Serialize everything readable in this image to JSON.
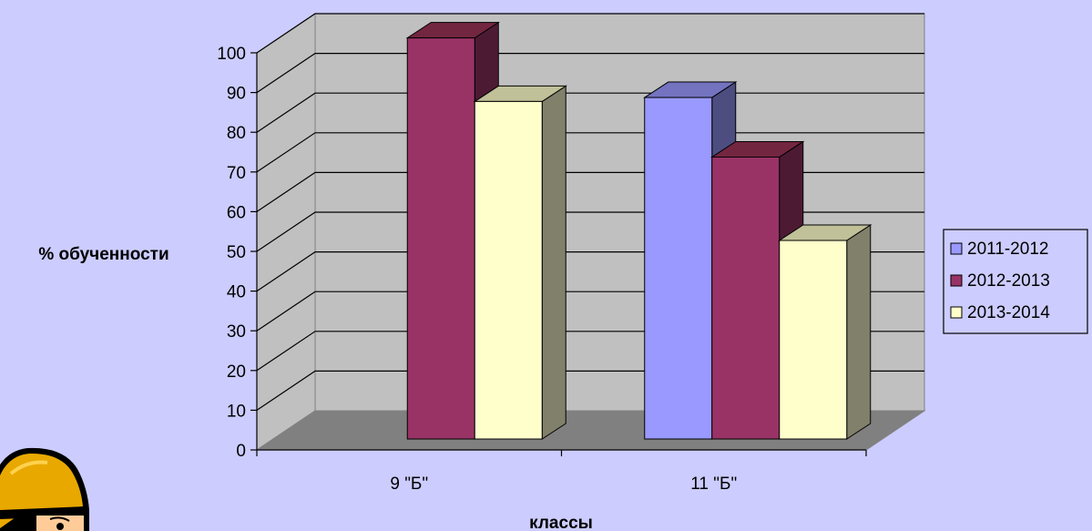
{
  "chart_data": {
    "type": "bar",
    "categories": [
      "9 \"Б\"",
      "11 \"Б\""
    ],
    "series": [
      {
        "name": "2011-2012",
        "values": [
          null,
          86
        ]
      },
      {
        "name": "2012-2013",
        "values": [
          101,
          71
        ]
      },
      {
        "name": "2013-2014",
        "values": [
          85,
          50
        ]
      }
    ],
    "xlabel": "классы",
    "ylabel": "% обученности",
    "ylim": [
      0,
      100
    ],
    "yticks": [
      "0",
      "10",
      "20",
      "30",
      "40",
      "50",
      "60",
      "70",
      "80",
      "90",
      "100"
    ],
    "grid": true,
    "legend_position": "right",
    "style": "3d-clustered-column"
  },
  "colors": {
    "background": "#ccccff",
    "plot_wall": "#c0c0c0",
    "plot_floor": "#808080",
    "series": [
      "#9999ff",
      "#993366",
      "#ffffcc"
    ],
    "series_side": [
      "#4d4d80",
      "#4d1a33",
      "#80806b"
    ],
    "series_top": [
      "#7373c0",
      "#732640",
      "#c0c099"
    ]
  },
  "decor": {
    "corner_character": "cartoon-character-with-helmet"
  }
}
